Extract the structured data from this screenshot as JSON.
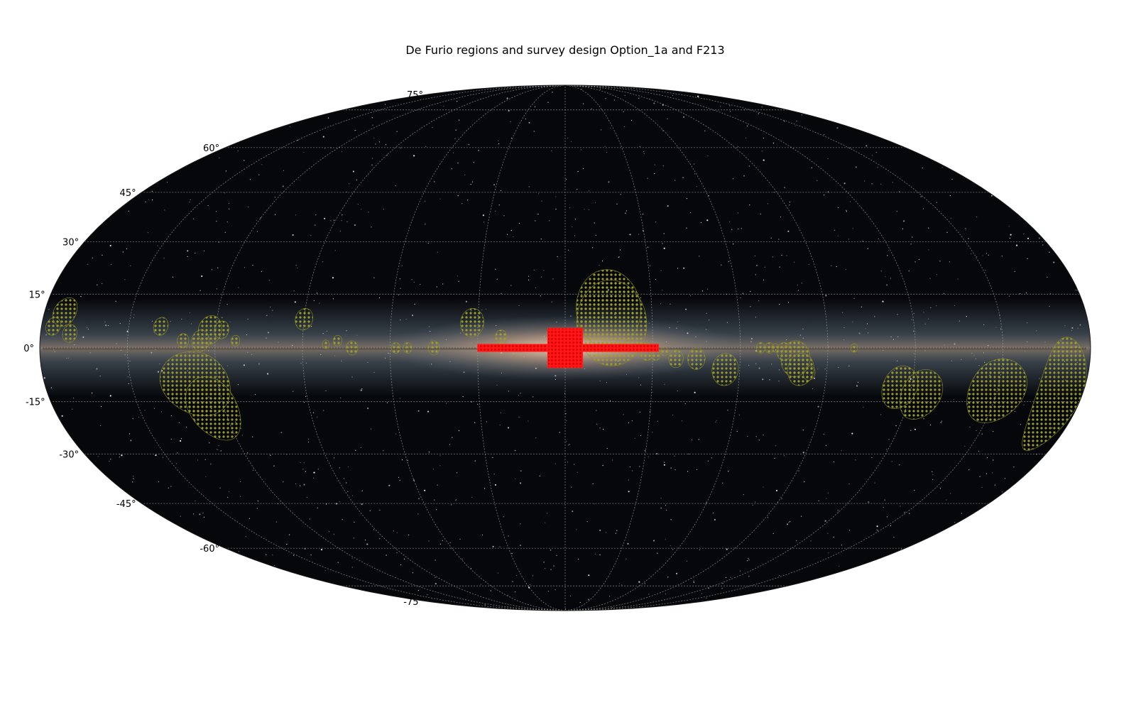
{
  "title": "De Furio regions and survey design Option_1a and F213",
  "map": {
    "projection": "mollweide",
    "frame": "galactic",
    "graticule": true,
    "background": "milky-way-all-sky-image",
    "lat_labels": [
      "75°",
      "60°",
      "45°",
      "30°",
      "15°",
      "0°",
      "-15°",
      "-30°",
      "-45°",
      "-60°",
      "-75°"
    ],
    "lat_values": [
      75,
      60,
      45,
      30,
      15,
      0,
      -15,
      -30,
      -45,
      -60,
      -75
    ],
    "colors": {
      "de_furio_regions": "#8f8f1e",
      "survey_design": "#ff1a1a",
      "grid": "#9aa0a6"
    }
  },
  "regions": [
    {
      "l": -15,
      "b": 11,
      "r": 11
    },
    {
      "l": -28,
      "b": -1,
      "r": 2.5
    },
    {
      "l": -31,
      "b": -2,
      "r": 1.5
    },
    {
      "l": -34,
      "b": -1,
      "r": 1.2
    },
    {
      "l": -38,
      "b": -3,
      "r": 2.5
    },
    {
      "l": -45,
      "b": -3,
      "r": 3
    },
    {
      "l": -55,
      "b": -6,
      "r": 4.5
    },
    {
      "l": -67,
      "b": 0,
      "r": 1.5
    },
    {
      "l": -70,
      "b": 0,
      "r": 1.5
    },
    {
      "l": -72,
      "b": 0,
      "r": 1.2
    },
    {
      "l": -75,
      "b": -1,
      "r": 2.5
    },
    {
      "l": -79,
      "b": -3,
      "r": 5
    },
    {
      "l": -81,
      "b": -6,
      "r": 4.5
    },
    {
      "l": -84,
      "b": -7,
      "r": 2
    },
    {
      "l": -99,
      "b": 0,
      "r": 1.2
    },
    {
      "l": -116,
      "b": -11,
      "r": 6
    },
    {
      "l": -124,
      "b": -13,
      "r": 7
    },
    {
      "l": 22,
      "b": 3,
      "r": 2
    },
    {
      "l": 32,
      "b": 7,
      "r": 4
    },
    {
      "l": 45,
      "b": 0,
      "r": 2
    },
    {
      "l": 54,
      "b": 0,
      "r": 1.5
    },
    {
      "l": 58,
      "b": 0,
      "r": 1.5
    },
    {
      "l": 73,
      "b": 0,
      "r": 2
    },
    {
      "l": 78,
      "b": 2,
      "r": 1.5
    },
    {
      "l": 82,
      "b": 1,
      "r": 1.2
    },
    {
      "l": 90,
      "b": 8,
      "r": 3
    },
    {
      "l": 113,
      "b": 2,
      "r": 1.5
    },
    {
      "l": 118,
      "b": 5,
      "r": 2.5
    },
    {
      "l": 122,
      "b": 5,
      "r": 4
    },
    {
      "l": 125,
      "b": 2,
      "r": 3
    },
    {
      "l": 131,
      "b": 2,
      "r": 2
    },
    {
      "l": 139,
      "b": 6,
      "r": 2.5
    },
    {
      "l": 170,
      "b": 4,
      "r": 2.5
    },
    {
      "l": 176,
      "b": 6,
      "r": 2.5
    },
    {
      "l": 173,
      "b": 10,
      "r": 4
    }
  ],
  "big_region": {
    "l_min": -26,
    "l_max": -6,
    "b_min": -5,
    "b_max": 19
  },
  "survey": {
    "strip": {
      "l_min": -32,
      "l_max": 30,
      "b_min": -1,
      "b_max": 1
    },
    "core": {
      "l_min": -6,
      "l_max": 6,
      "b_min": -5.5,
      "b_max": 5.5
    }
  },
  "de_furio_ellipses": [
    {
      "l": 128,
      "b": -10,
      "a": 12,
      "bb": 9
    },
    {
      "l": 124,
      "b": -17,
      "a": 9,
      "bb": 9
    },
    {
      "l": -150,
      "b": -12,
      "a": 10,
      "bb": 9
    },
    {
      "l": -172,
      "b": -13,
      "a": 8,
      "bb": 16
    }
  ]
}
